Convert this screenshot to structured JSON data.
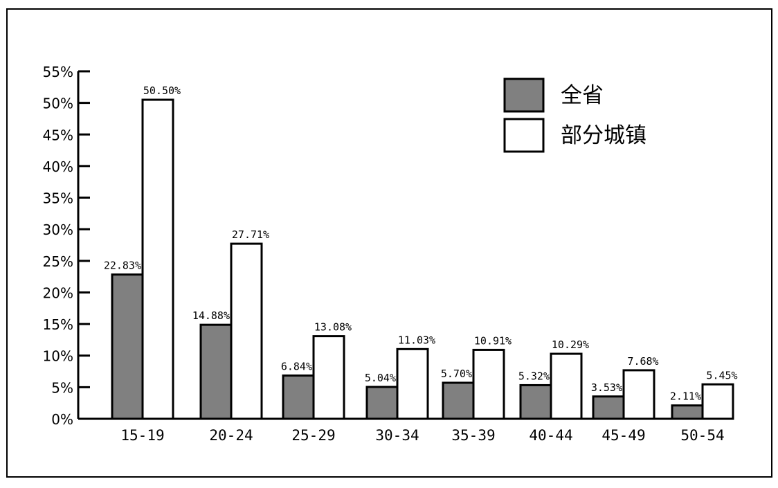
{
  "chart_data": {
    "type": "bar",
    "categories": [
      "15-19",
      "20-24",
      "25-29",
      "30-34",
      "35-39",
      "40-44",
      "45-49",
      "50-54"
    ],
    "series": [
      {
        "name": "全省",
        "color": "#808080",
        "values": [
          22.83,
          14.88,
          6.84,
          5.04,
          5.7,
          5.32,
          3.53,
          2.11
        ],
        "labels": [
          "22.83%",
          "14.88%",
          "6.84%",
          "5.04%",
          "5.70%",
          "5.32%",
          "3.53%",
          "2.11%"
        ]
      },
      {
        "name": "部分城镇",
        "color": "#ffffff",
        "values": [
          50.5,
          27.71,
          13.08,
          11.03,
          10.91,
          10.29,
          7.68,
          5.45
        ],
        "labels": [
          "50.50%",
          "27.71%",
          "13.08%",
          "11.03%",
          "10.91%",
          "10.29%",
          "7.68%",
          "5.45%"
        ]
      }
    ],
    "ylim": [
      0,
      55
    ],
    "yticks": [
      0,
      5,
      10,
      15,
      20,
      25,
      30,
      35,
      40,
      45,
      50,
      55
    ],
    "ytick_labels": [
      "0%",
      "5%",
      "10%",
      "15%",
      "20%",
      "25%",
      "30%",
      "35%",
      "40%",
      "45%",
      "50%",
      "55%"
    ],
    "title": "",
    "xlabel": "",
    "ylabel": "",
    "legend_position": "top-right",
    "grid": false
  }
}
